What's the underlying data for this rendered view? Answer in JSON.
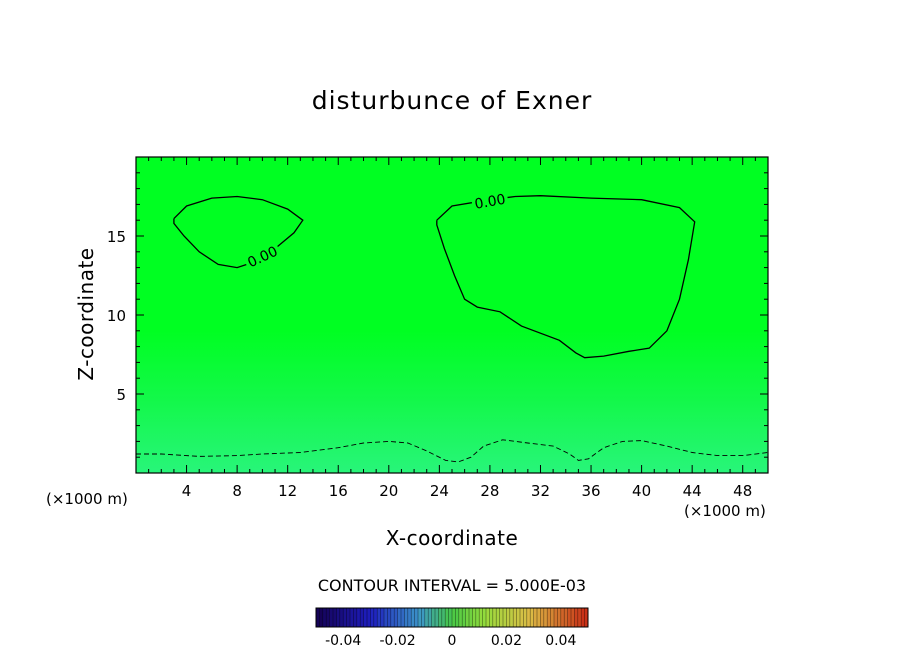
{
  "chart_data": {
    "type": "contour",
    "title": "disturbunce of Exner",
    "xlabel": "X-coordinate",
    "ylabel": "Z-coordinate",
    "x_unit": "(×1000 m)",
    "y_unit": "(×1000 m)",
    "xlim": [
      0,
      50
    ],
    "ylim": [
      0,
      20
    ],
    "x_ticks": [
      4,
      8,
      12,
      16,
      20,
      24,
      28,
      32,
      36,
      40,
      44,
      48
    ],
    "y_ticks": [
      5,
      10,
      15
    ],
    "contour_interval_text": "CONTOUR INTERVAL = 5.000E-03",
    "contour_labels": [
      {
        "text": "0.00",
        "x": 10,
        "z": 13.7,
        "rot": -25
      },
      {
        "text": "0.00",
        "x": 28,
        "z": 17.2,
        "rot": -10
      }
    ],
    "contours": [
      {
        "level": 0.0,
        "style": "solid",
        "points": [
          [
            3,
            16.1
          ],
          [
            4,
            16.9
          ],
          [
            6,
            17.4
          ],
          [
            8,
            17.5
          ],
          [
            10,
            17.3
          ],
          [
            12,
            16.7
          ],
          [
            13.2,
            16.0
          ],
          [
            12.5,
            15.2
          ],
          [
            11,
            14.2
          ],
          [
            9.5,
            13.4
          ],
          [
            8,
            13.0
          ],
          [
            6.5,
            13.2
          ],
          [
            5,
            14.0
          ],
          [
            3.8,
            15.0
          ],
          [
            3,
            15.8
          ],
          [
            3,
            16.1
          ]
        ]
      },
      {
        "level": 0.0,
        "style": "solid",
        "points": [
          [
            23.8,
            16.0
          ],
          [
            25,
            16.9
          ],
          [
            28,
            17.3
          ],
          [
            30,
            17.5
          ],
          [
            32,
            17.55
          ],
          [
            36,
            17.4
          ],
          [
            40,
            17.3
          ],
          [
            43,
            16.8
          ],
          [
            44.2,
            15.9
          ],
          [
            43.7,
            13.5
          ],
          [
            43,
            11
          ],
          [
            42,
            9
          ],
          [
            40.6,
            7.9
          ],
          [
            39,
            7.7
          ],
          [
            37,
            7.4
          ],
          [
            35.5,
            7.3
          ],
          [
            34.8,
            7.6
          ],
          [
            33.5,
            8.4
          ],
          [
            30.5,
            9.3
          ],
          [
            28.8,
            10.2
          ],
          [
            27,
            10.5
          ],
          [
            26,
            11
          ],
          [
            25.2,
            12.5
          ],
          [
            24.4,
            14.2
          ],
          [
            23.8,
            15.7
          ],
          [
            23.8,
            16.0
          ]
        ]
      },
      {
        "level": -0.005,
        "style": "dashed",
        "points": [
          [
            0,
            1.2
          ],
          [
            2,
            1.2
          ],
          [
            5,
            1.05
          ],
          [
            8,
            1.1
          ],
          [
            10,
            1.2
          ],
          [
            13,
            1.3
          ],
          [
            16,
            1.6
          ],
          [
            18,
            1.9
          ],
          [
            20,
            2.0
          ],
          [
            21.5,
            1.9
          ],
          [
            23,
            1.4
          ],
          [
            24.5,
            0.8
          ],
          [
            25.5,
            0.7
          ],
          [
            26.5,
            1.0
          ],
          [
            27.5,
            1.7
          ],
          [
            29,
            2.1
          ],
          [
            31,
            1.9
          ],
          [
            33,
            1.7
          ],
          [
            34.3,
            1.2
          ],
          [
            35,
            0.8
          ],
          [
            35.8,
            0.9
          ],
          [
            37,
            1.6
          ],
          [
            38.5,
            2.0
          ],
          [
            40,
            2.05
          ],
          [
            42,
            1.7
          ],
          [
            44,
            1.3
          ],
          [
            46,
            1.1
          ],
          [
            48,
            1.1
          ],
          [
            50,
            1.3
          ]
        ]
      }
    ],
    "colorbar": {
      "range": [
        -0.05,
        0.05
      ],
      "ticks": [
        "-0.04",
        "-0.02",
        "0",
        "0.02",
        "0.04"
      ],
      "tick_values": [
        -0.04,
        -0.02,
        0,
        0.02,
        0.04
      ]
    },
    "colors": {
      "field": "#00ff22",
      "field_low": "#28f57a",
      "contour": "#000000"
    }
  }
}
